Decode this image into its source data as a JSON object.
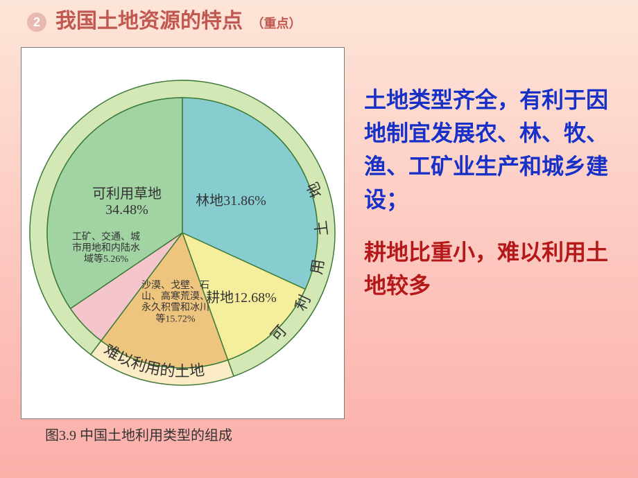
{
  "bullet_number": "2",
  "title_main": "我国土地资源的特点",
  "title_sub": "（重点）",
  "caption": "图3.9 中国土地利用类型的组成",
  "side_p1": "土地类型齐全，有利于因地制宜发展农、林、牧、渔、工矿业生产和城乡建设；",
  "side_p2": "耕地比重小，难以利用土地较多",
  "ring": {
    "outer_r": 220,
    "inner_r": 195,
    "usable_color": "#d4e8b6",
    "unusable_color": "#fcecc6",
    "stroke": "#3d7a3a",
    "label_usable": "可利用土地",
    "label_unusable": "难以利用的土地",
    "label_fontsize": 22,
    "label_color": "#333333"
  },
  "pie": {
    "type": "pie",
    "radius": 195,
    "stroke": "#3d7a3a",
    "slices": [
      {
        "name": "forest",
        "value": 31.86,
        "color": "#87cdd0",
        "label_lines": [
          "林地31.86%"
        ]
      },
      {
        "name": "farm",
        "value": 12.68,
        "color": "#f5ee9d",
        "label_lines": [
          "耕地12.68%"
        ]
      },
      {
        "name": "unusable",
        "value": 15.72,
        "color": "#eec57f",
        "label_lines": [
          "沙漠、戈壁、石",
          "山、高寒荒漠、",
          "永久积雪和冰川",
          "等15.72%"
        ]
      },
      {
        "name": "industry",
        "value": 5.26,
        "color": "#f4c6cc",
        "label_lines": [
          "工矿、交通、城",
          "市用地和内陆水",
          "域等5.26%"
        ]
      },
      {
        "name": "grass",
        "value": 34.48,
        "color": "#a1d3a3",
        "label_lines": [
          "可利用草地",
          "34.48%"
        ]
      }
    ],
    "start_angle_deg": -90,
    "label_fontsize_large": 20,
    "label_fontsize_small": 14,
    "label_color": "#333333"
  }
}
